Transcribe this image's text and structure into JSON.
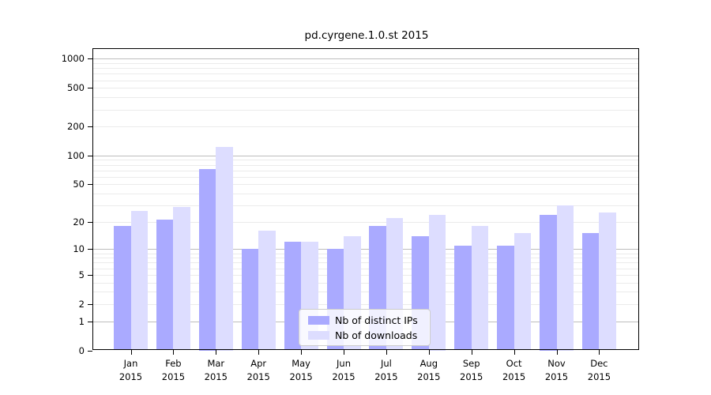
{
  "title": "pd.cyrgene.1.0.st 2015",
  "colors": {
    "distinct_ips": "#aaaaff",
    "downloads": "#ddddff",
    "grid_major": "#bdbdbd",
    "grid_minor": "#ebebeb",
    "axis": "#000000",
    "legend_border": "#cccccc"
  },
  "chart_data": {
    "type": "bar",
    "title": "pd.cyrgene.1.0.st 2015",
    "categories": [
      "Jan",
      "Feb",
      "Mar",
      "Apr",
      "May",
      "Jun",
      "Jul",
      "Aug",
      "Sep",
      "Oct",
      "Nov",
      "Dec"
    ],
    "x_tick_year": "2015",
    "series": [
      {
        "name": "Nb of distinct IPs",
        "color": "#aaaaff",
        "values": [
          18,
          21,
          73,
          10,
          12,
          10,
          18,
          14,
          11,
          11,
          24,
          15
        ]
      },
      {
        "name": "Nb of downloads",
        "color": "#ddddff",
        "values": [
          26,
          29,
          124,
          16,
          12,
          14,
          22,
          24,
          18,
          15,
          30,
          25
        ]
      }
    ],
    "yscale": "log1p",
    "yticks": [
      0,
      1,
      2,
      5,
      10,
      20,
      50,
      100,
      200,
      500,
      1000
    ],
    "ylim": [
      0,
      1270
    ],
    "grid": true,
    "legend_position": "lower center"
  }
}
